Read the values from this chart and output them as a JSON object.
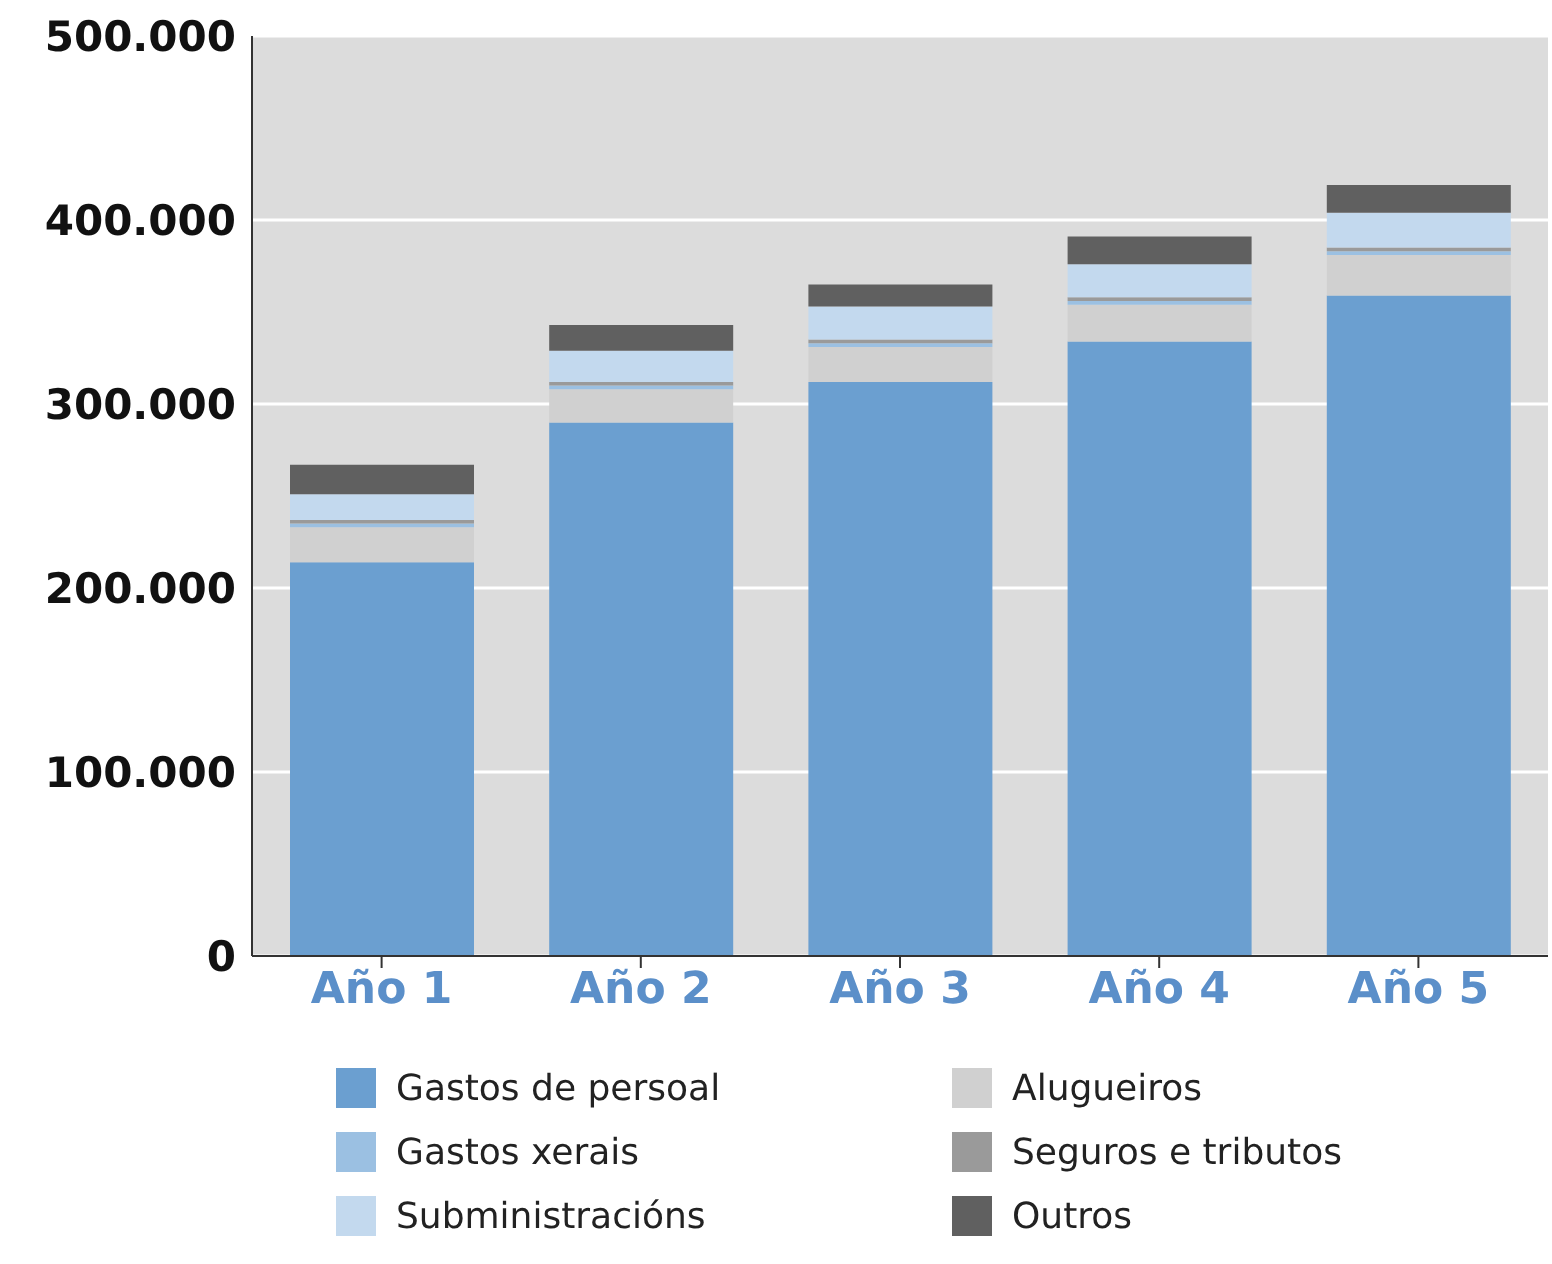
{
  "chart_data": {
    "type": "bar",
    "stacked": true,
    "categories": [
      "Año 1",
      "Año 2",
      "Año 3",
      "Año 4",
      "Año 5"
    ],
    "series": [
      {
        "name": "Gastos de persoal",
        "color": "#6b9fd0",
        "values": [
          214000,
          290000,
          312000,
          334000,
          359000
        ]
      },
      {
        "name": "Alugueiros",
        "color": "#d0d0d0",
        "values": [
          19000,
          18000,
          19000,
          20000,
          22000
        ]
      },
      {
        "name": "Gastos xerais",
        "color": "#9bc0e2",
        "values": [
          2000,
          2000,
          2000,
          2000,
          2000
        ]
      },
      {
        "name": "Seguros e tributos",
        "color": "#9a9a9a",
        "values": [
          2000,
          2000,
          2000,
          2000,
          2000
        ]
      },
      {
        "name": "Subministracións",
        "color": "#c3d9ee",
        "values": [
          14000,
          17000,
          18000,
          18000,
          19000
        ]
      },
      {
        "name": "Outros",
        "color": "#606060",
        "values": [
          16000,
          14000,
          12000,
          15000,
          15000
        ]
      }
    ],
    "ylim": [
      0,
      500000
    ],
    "yticks": [
      0,
      {
        "value": 100000,
        "label": "100.000"
      },
      {
        "value": 200000,
        "label": "200.000"
      },
      {
        "value": 300000,
        "label": "300.000"
      },
      {
        "value": 400000,
        "label": "400.000"
      },
      {
        "value": 500000,
        "label": "500.000"
      }
    ],
    "grid": "y",
    "legend": "bottom"
  }
}
